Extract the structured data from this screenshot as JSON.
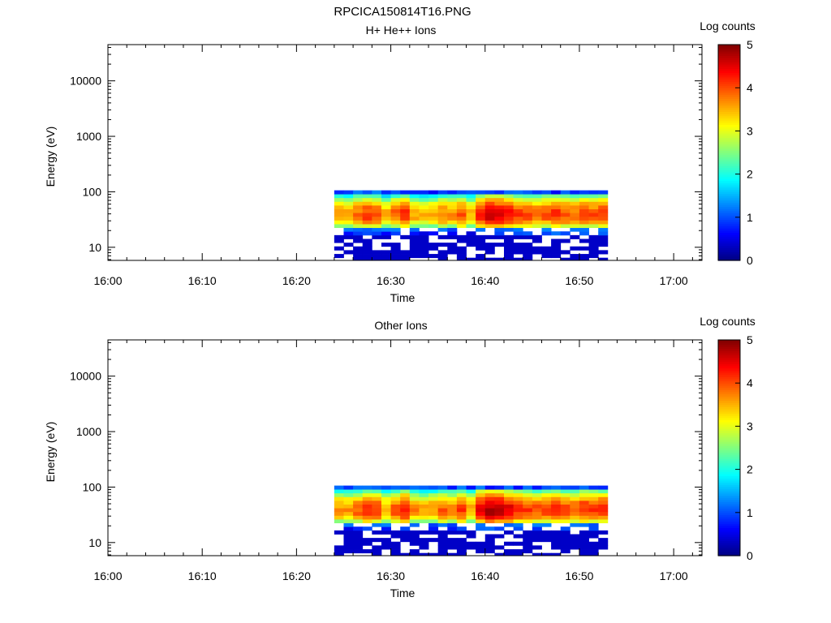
{
  "figure": {
    "title": "RPCICA150814T16.PNG"
  },
  "colormap": {
    "name": "jet",
    "stops": [
      "#000080",
      "#0000ff",
      "#0080ff",
      "#00ffff",
      "#80ff80",
      "#ffff00",
      "#ff8000",
      "#ff0000",
      "#800000"
    ]
  },
  "chart_data": [
    {
      "type": "heatmap",
      "title": "H+ He++ Ions",
      "xlabel": "Time",
      "ylabel": "Energy (eV)",
      "y_scale": "log",
      "xlim": [
        "16:00",
        "17:03"
      ],
      "ylim": [
        5.8,
        45000
      ],
      "x_ticks": [
        "16:00",
        "16:10",
        "16:20",
        "16:30",
        "16:40",
        "16:50",
        "17:00"
      ],
      "y_ticks": [
        "10",
        "100",
        "1000",
        "10000"
      ],
      "colorbar": {
        "label": "Log counts",
        "range": [
          0,
          5
        ],
        "ticks": [
          "0",
          "1",
          "2",
          "3",
          "4",
          "5"
        ]
      },
      "time_range": [
        "16:24",
        "16:53"
      ],
      "time_bins": [
        "16:24",
        "16:25",
        "16:26",
        "16:27",
        "16:28",
        "16:29",
        "16:30",
        "16:31",
        "16:32",
        "16:33",
        "16:34",
        "16:35",
        "16:36",
        "16:37",
        "16:38",
        "16:39",
        "16:40",
        "16:41",
        "16:42",
        "16:43",
        "16:44",
        "16:45",
        "16:46",
        "16:47",
        "16:48",
        "16:49",
        "16:50",
        "16:51",
        "16:52"
      ],
      "energy_bins_eV": [
        6.0,
        7.0,
        8.2,
        9.6,
        11.2,
        13.1,
        15.3,
        17.9,
        20.9,
        24.4,
        28.5,
        33.3,
        38.9,
        45.4,
        53.0,
        61.9,
        72.3,
        84.5,
        98.5
      ],
      "peak_log_counts": [
        3.7,
        3.6,
        3.9,
        4.1,
        4.0,
        3.5,
        3.9,
        4.2,
        3.6,
        3.5,
        3.6,
        3.8,
        3.7,
        4.0,
        3.5,
        4.3,
        4.6,
        4.5,
        4.4,
        4.1,
        4.0,
        3.9,
        4.0,
        4.2,
        4.0,
        3.9,
        4.1,
        4.0,
        4.1
      ],
      "peak_energy_eV": 38,
      "note_levels": "log10 counts, 0 = blank"
    },
    {
      "type": "heatmap",
      "title": "Other Ions",
      "xlabel": "Time",
      "ylabel": "Energy (eV)",
      "y_scale": "log",
      "xlim": [
        "16:00",
        "17:03"
      ],
      "ylim": [
        5.8,
        45000
      ],
      "x_ticks": [
        "16:00",
        "16:10",
        "16:20",
        "16:30",
        "16:40",
        "16:50",
        "17:00"
      ],
      "y_ticks": [
        "10",
        "100",
        "1000",
        "10000"
      ],
      "colorbar": {
        "label": "Log counts",
        "range": [
          0,
          5
        ],
        "ticks": [
          "0",
          "1",
          "2",
          "3",
          "4",
          "5"
        ]
      },
      "time_range": [
        "16:24",
        "16:53"
      ],
      "time_bins": [
        "16:24",
        "16:25",
        "16:26",
        "16:27",
        "16:28",
        "16:29",
        "16:30",
        "16:31",
        "16:32",
        "16:33",
        "16:34",
        "16:35",
        "16:36",
        "16:37",
        "16:38",
        "16:39",
        "16:40",
        "16:41",
        "16:42",
        "16:43",
        "16:44",
        "16:45",
        "16:46",
        "16:47",
        "16:48",
        "16:49",
        "16:50",
        "16:51",
        "16:52"
      ],
      "energy_bins_eV": [
        6.0,
        7.0,
        8.2,
        9.6,
        11.2,
        13.1,
        15.3,
        17.9,
        20.9,
        24.4,
        28.5,
        33.3,
        38.9,
        45.4,
        53.0,
        61.9,
        72.3,
        84.5,
        98.5
      ],
      "peak_log_counts": [
        3.7,
        3.7,
        3.9,
        4.2,
        4.1,
        3.6,
        4.0,
        4.3,
        3.7,
        3.6,
        3.7,
        3.9,
        3.8,
        4.1,
        3.6,
        4.5,
        4.8,
        4.7,
        4.5,
        4.2,
        4.1,
        4.0,
        4.1,
        4.3,
        4.1,
        4.0,
        4.2,
        4.1,
        4.2
      ],
      "peak_energy_eV": 38
    }
  ]
}
